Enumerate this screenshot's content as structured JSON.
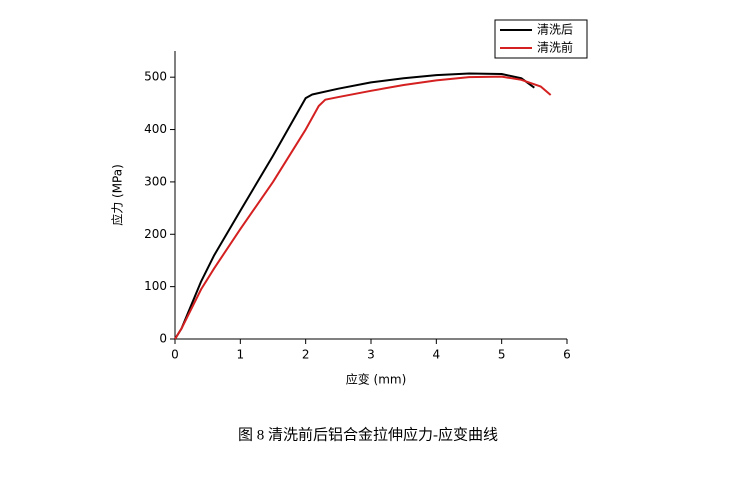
{
  "chart_data": {
    "type": "line",
    "xlabel": "应变 (mm)",
    "ylabel": "应力 (MPa)",
    "caption": "图 8 清洗前后铝合金拉伸应力-应变曲线",
    "xlim": [
      0,
      6
    ],
    "xticks": [
      0,
      1,
      2,
      3,
      4,
      5,
      6
    ],
    "ylim": [
      0,
      550
    ],
    "yticks": [
      0,
      100,
      200,
      300,
      400,
      500
    ],
    "legend": "upper right",
    "series": [
      {
        "name": "清洗后",
        "color": "#000000",
        "x": [
          0,
          0.1,
          0.2,
          0.4,
          0.6,
          1,
          1.5,
          2,
          2.1,
          2.5,
          3,
          3.5,
          4,
          4.5,
          5,
          5.3,
          5.5
        ],
        "values": [
          0,
          20,
          50,
          110,
          160,
          245,
          350,
          460,
          467,
          478,
          490,
          498,
          504,
          507,
          506,
          498,
          480
        ]
      },
      {
        "name": "清洗前",
        "color": "#d42020",
        "x": [
          0,
          0.1,
          0.2,
          0.4,
          0.6,
          1,
          1.5,
          2,
          2.2,
          2.3,
          2.5,
          3,
          3.5,
          4,
          4.5,
          5,
          5.3,
          5.6,
          5.75
        ],
        "values": [
          0,
          20,
          45,
          95,
          135,
          210,
          300,
          400,
          445,
          457,
          462,
          474,
          485,
          494,
          500,
          501,
          495,
          482,
          466
        ]
      }
    ]
  }
}
